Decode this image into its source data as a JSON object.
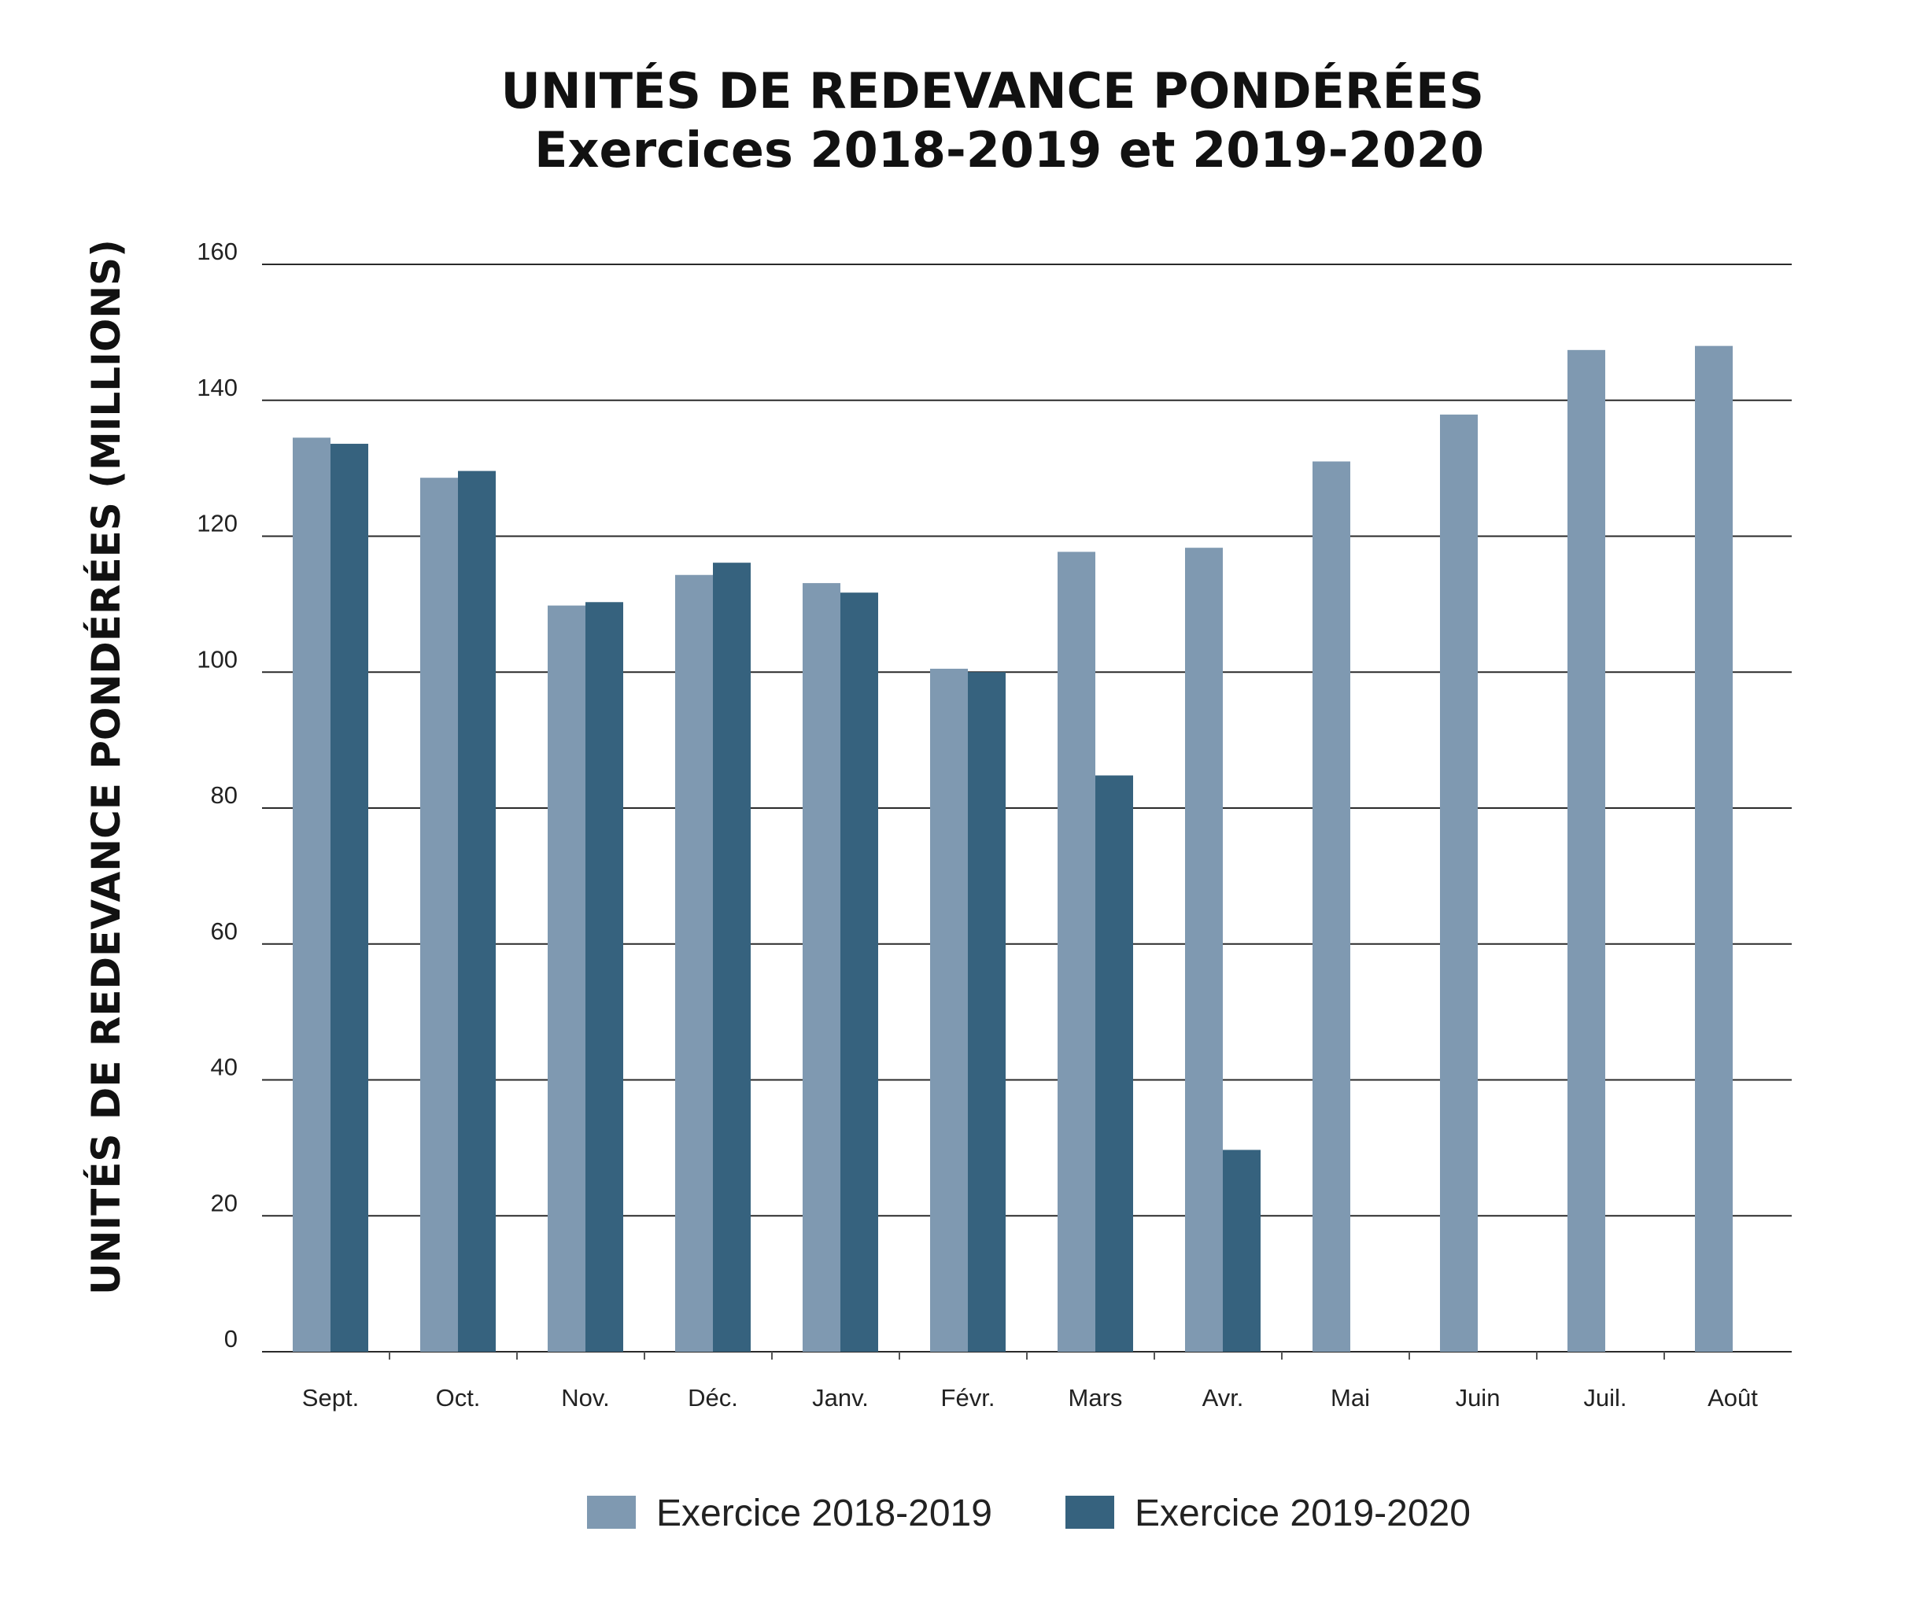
{
  "chart_data": {
    "type": "bar",
    "title": "UNITÉS DE REDEVANCE PONDÉRÉES",
    "subtitle": "Exercices 2018-2019 et 2019-2020",
    "xlabel": "",
    "ylabel": "UNITÉS DE REDEVANCE PONDÉRÉES (MILLIONS)",
    "ylim": [
      0,
      160
    ],
    "yticks": [
      0,
      20,
      40,
      60,
      80,
      100,
      120,
      140,
      160
    ],
    "grid": true,
    "legend_position": "bottom",
    "categories": [
      "Sept.",
      "Oct.",
      "Nov.",
      "Déc.",
      "Janv.",
      "Févr.",
      "Mars",
      "Avr.",
      "Mai",
      "Juin",
      "Juil.",
      "Août"
    ],
    "series": [
      {
        "name": "Exercice 2018-2019",
        "color": "#7f99b1",
        "values": [
          134.5,
          128.6,
          109.8,
          114.3,
          113.1,
          100.5,
          117.7,
          118.3,
          131.0,
          137.9,
          147.4,
          148.0
        ]
      },
      {
        "name": "Exercice 2019-2020",
        "color": "#36627e",
        "values": [
          133.6,
          129.6,
          110.3,
          116.1,
          111.7,
          100.0,
          84.8,
          29.7,
          null,
          null,
          null,
          null
        ]
      }
    ]
  }
}
